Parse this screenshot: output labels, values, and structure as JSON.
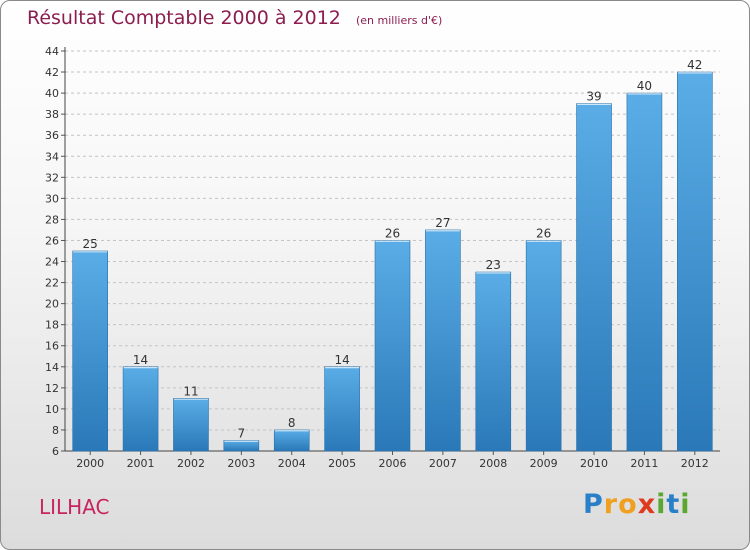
{
  "header": {
    "title": "Résultat Comptable 2000 à 2012",
    "subtitle": "(en milliers d'€)"
  },
  "footer": {
    "commune": "LILHAC",
    "logo": {
      "text": "Proxiti",
      "letters": [
        {
          "char": "P",
          "color": "#2a7fc9"
        },
        {
          "char": "r",
          "color": "#f0a020"
        },
        {
          "char": "o",
          "color": "#f0a020"
        },
        {
          "char": "x",
          "color": "#e03a1e"
        },
        {
          "char": "i",
          "color": "#5aa832"
        },
        {
          "char": "t",
          "color": "#2a7fc9"
        },
        {
          "char": "i",
          "color": "#5aa832"
        }
      ]
    }
  },
  "chart_data": {
    "type": "bar",
    "title": "Résultat Comptable 2000 à 2012",
    "subtitle": "(en milliers d'€)",
    "categories": [
      "2000",
      "2001",
      "2002",
      "2003",
      "2004",
      "2005",
      "2006",
      "2007",
      "2008",
      "2009",
      "2010",
      "2011",
      "2012"
    ],
    "values": [
      25,
      14,
      11,
      7,
      8,
      14,
      26,
      27,
      23,
      26,
      39,
      40,
      42
    ],
    "ylim": [
      6,
      44
    ],
    "yticks": [
      6,
      8,
      10,
      12,
      14,
      16,
      18,
      20,
      22,
      24,
      26,
      28,
      30,
      32,
      34,
      36,
      38,
      40,
      42,
      44
    ],
    "grid": "horizontal-dashed",
    "bar_color_top": "#5aade6",
    "bar_color_bottom": "#2a78b8",
    "show_data_labels": true
  }
}
